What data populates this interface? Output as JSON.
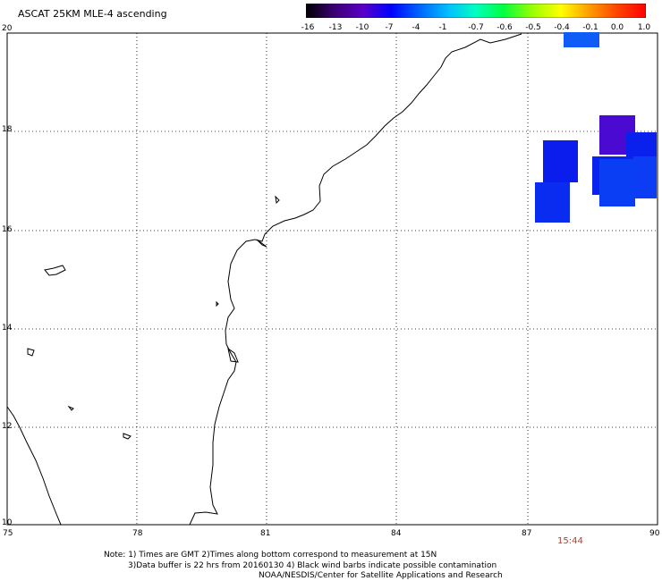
{
  "title": "ASCAT 25KM MLE-4 ascending",
  "colorbar": {
    "labels": [
      "-16",
      "-13",
      "-10",
      "-7",
      "-4",
      "-1",
      "-0.7",
      "-0.6",
      "-0.5",
      "-0.4",
      "-0.1",
      "0.0",
      "1.0"
    ],
    "colors": [
      "#000000",
      "#3a0070",
      "#5a00c8",
      "#0000ff",
      "#0060ff",
      "#00c0ff",
      "#00ffc0",
      "#00ff40",
      "#a0ff00",
      "#ffff00",
      "#ffa000",
      "#ff4000",
      "#ff0000"
    ]
  },
  "axes": {
    "lat_labels": [
      "20",
      "18",
      "16",
      "14",
      "12",
      "10"
    ],
    "lon_labels": [
      "75",
      "78",
      "81",
      "84",
      "87",
      "90"
    ]
  },
  "time_label": "15:44",
  "notes": {
    "line1": "Note: 1) Times are GMT 2)Times along bottom correspond to measurement at 15N",
    "line2": "3)Data buffer is 22 hrs from 20160130 4) Black wind barbs indicate possible contamination",
    "line3": "NOAA/NESDIS/Center for Satellite Applications and Research"
  }
}
